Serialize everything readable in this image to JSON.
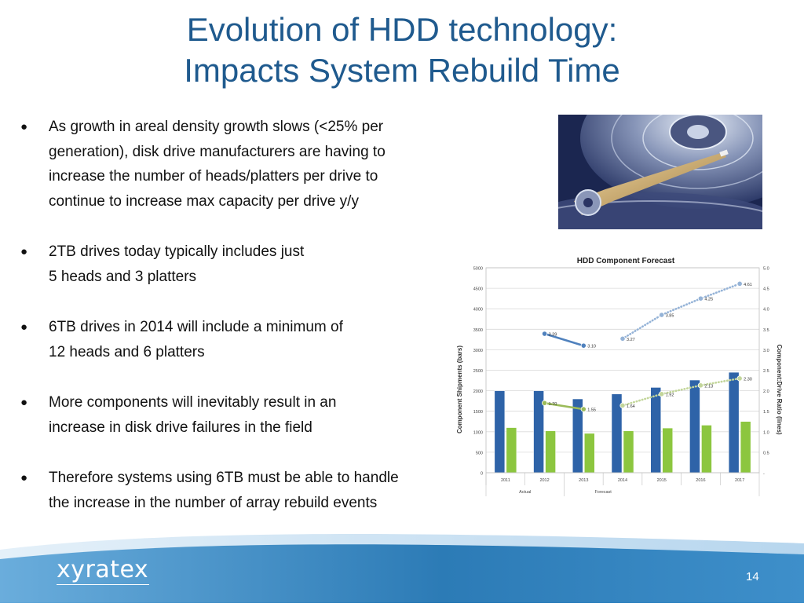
{
  "slide": {
    "title_line1": "Evolution of HDD technology:",
    "title_line2": "Impacts System Rebuild Time",
    "page_number": "14",
    "logo_text": "xyratex"
  },
  "bullets": [
    {
      "lines": [
        "As growth in areal density growth slows (<25% per",
        "generation), disk drive manufacturers are having to",
        "increase the number of heads/platters per drive to",
        "continue to increase max capacity per drive y/y"
      ]
    },
    {
      "lines": [
        "2TB drives today typically includes just",
        "5 heads and 3 platters"
      ]
    },
    {
      "lines": [
        "6TB drives in 2014 will include a minimum of",
        "12 heads and 6 platters"
      ]
    },
    {
      "lines": [
        "More components will inevitably result in an",
        "increase in disk drive failures in the field"
      ]
    },
    {
      "lines": [
        "Therefore systems using 6TB must be able to handle",
        "the increase in the number of array rebuild events"
      ]
    }
  ],
  "bullet_symbol": "●",
  "chart_data": {
    "type": "bar",
    "title": "HDD Component Forecast",
    "ylabel": "Component Shipments (bars)",
    "y2label": "Component:Drive Ratio (lines)",
    "categories": [
      "2011",
      "2012",
      "2013",
      "2014",
      "2015",
      "2016",
      "2017"
    ],
    "ylim": [
      0,
      5000
    ],
    "y2lim": [
      0,
      5.0
    ],
    "yticks": [
      "0",
      "500",
      "1000",
      "1500",
      "2000",
      "2500",
      "3000",
      "3500",
      "4000",
      "4500",
      "5000"
    ],
    "y2ticks": [
      "-",
      "0.5",
      "1.0",
      "1.5",
      "2.0",
      "2.5",
      "3.0",
      "3.5",
      "4.0",
      "4.5",
      "5.0"
    ],
    "bar_series": [
      {
        "color": "#2e63a8",
        "values": [
          2000,
          2000,
          1800,
          1920,
          2080,
          2260,
          2450
        ]
      },
      {
        "color": "#8cc63f",
        "values": [
          1100,
          1020,
          960,
          1020,
          1090,
          1160,
          1250
        ]
      }
    ],
    "line_series": [
      {
        "color": "#4f81bd",
        "style": "solid",
        "x_index": [
          1,
          2
        ],
        "values": [
          3.39,
          3.1
        ],
        "labels": [
          "3.39",
          "3.10"
        ]
      },
      {
        "color": "#95b3d7",
        "style": "dotted",
        "x_index": [
          3,
          4,
          5,
          6
        ],
        "values": [
          3.27,
          3.85,
          4.25,
          4.61
        ],
        "labels": [
          "3.27",
          "3.85",
          "4.25",
          "4.61"
        ]
      },
      {
        "color": "#9bbb59",
        "style": "solid",
        "x_index": [
          1,
          2
        ],
        "values": [
          1.7,
          1.55
        ],
        "labels": [
          "1.70",
          "1.55"
        ]
      },
      {
        "color": "#c3d69b",
        "style": "dotted",
        "x_index": [
          3,
          4,
          5,
          6
        ],
        "values": [
          1.64,
          1.92,
          2.13,
          2.3
        ],
        "labels": [
          "1.64",
          "1.92",
          "2.13",
          "2.30"
        ]
      }
    ],
    "groups": [
      {
        "label": "Actual",
        "from": 0,
        "to": 1
      },
      {
        "label": "Forecast",
        "from": 2,
        "to": 6
      }
    ],
    "grid": true
  },
  "colors": {
    "title": "#1f5a8e",
    "footer_dark": "#2c7bb6",
    "footer_light": "#d5e8f5"
  }
}
